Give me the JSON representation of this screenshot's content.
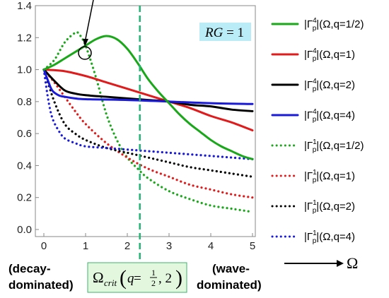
{
  "chart_data": {
    "type": "line",
    "xlim": [
      0,
      5
    ],
    "ylim": [
      0,
      1.4
    ],
    "xticks": [
      "0",
      "1",
      "2",
      "3",
      "4",
      "5"
    ],
    "yticks": [
      "0.0",
      "0.2",
      "0.4",
      "0.6",
      "0.8",
      "1.0",
      "1.2",
      "1.4"
    ],
    "axis_arrow_label": "Ω",
    "grid": false,
    "legend_position": "right",
    "series": [
      {
        "name": "|Γ_p^4|(Ω,q=1/2)",
        "legend_main": "|Γ",
        "legend_sup": "4",
        "legend_sub": "p",
        "legend_tail": "|(Ω,q=1/2)",
        "color": "#1aa81a",
        "dash": "solid",
        "x": [
          0,
          0.25,
          0.5,
          0.75,
          1.0,
          1.25,
          1.5,
          1.75,
          2.0,
          2.25,
          2.5,
          2.75,
          3.0,
          3.25,
          3.5,
          3.75,
          4.0,
          4.25,
          4.5,
          4.75,
          5.0
        ],
        "y": [
          1.0,
          1.03,
          1.07,
          1.11,
          1.15,
          1.19,
          1.21,
          1.19,
          1.13,
          1.04,
          0.94,
          0.86,
          0.79,
          0.72,
          0.66,
          0.61,
          0.56,
          0.52,
          0.49,
          0.46,
          0.44
        ]
      },
      {
        "name": "|Γ_p^4|(Ω,q=1)",
        "legend_main": "|Γ",
        "legend_sup": "4",
        "legend_sub": "p",
        "legend_tail": "|(Ω,q=1)",
        "color": "#e11b1b",
        "dash": "solid",
        "x": [
          0,
          0.5,
          1.0,
          1.5,
          2.0,
          2.5,
          3.0,
          3.5,
          4.0,
          4.5,
          5.0
        ],
        "y": [
          1.0,
          0.99,
          0.96,
          0.92,
          0.88,
          0.84,
          0.8,
          0.76,
          0.71,
          0.67,
          0.62
        ]
      },
      {
        "name": "|Γ_p^4|(Ω,q=2)",
        "legend_main": "|Γ",
        "legend_sup": "4",
        "legend_sub": "p",
        "legend_tail": "|(Ω,q=2)",
        "color": "#000000",
        "dash": "solid",
        "x": [
          0,
          0.25,
          0.5,
          0.75,
          1.0,
          1.5,
          2.0,
          2.5,
          3.0,
          3.5,
          4.0,
          4.5,
          5.0
        ],
        "y": [
          1.0,
          0.93,
          0.87,
          0.85,
          0.84,
          0.83,
          0.82,
          0.81,
          0.8,
          0.78,
          0.77,
          0.75,
          0.74
        ]
      },
      {
        "name": "|Γ_p^4|(Ω,q=4)",
        "legend_main": "|Γ",
        "legend_sup": "4",
        "legend_sub": "p",
        "legend_tail": "|(Ω,q=4)",
        "color": "#1a1adb",
        "dash": "solid",
        "x": [
          0,
          0.1,
          0.2,
          0.35,
          0.5,
          0.75,
          1.0,
          2.0,
          3.0,
          4.0,
          5.0
        ],
        "y": [
          1.0,
          0.93,
          0.87,
          0.84,
          0.83,
          0.82,
          0.815,
          0.81,
          0.8,
          0.79,
          0.785
        ]
      },
      {
        "name": "|Γ_p^1|(Ω,q=1/2)",
        "legend_main": "|Γ",
        "legend_sup": "1",
        "legend_sub": "p",
        "legend_tail": "|(Ω,q=1/2)",
        "color": "#1aa81a",
        "dash": "dot",
        "x": [
          0,
          0.25,
          0.5,
          0.75,
          0.85,
          1.0,
          1.25,
          1.5,
          1.75,
          2.0,
          2.25,
          2.5,
          3.0,
          3.5,
          4.0,
          4.5,
          5.0
        ],
        "y": [
          1.0,
          1.06,
          1.17,
          1.23,
          1.22,
          1.15,
          0.95,
          0.72,
          0.56,
          0.45,
          0.38,
          0.32,
          0.24,
          0.19,
          0.15,
          0.13,
          0.11
        ]
      },
      {
        "name": "|Γ_p^1|(Ω,q=1)",
        "legend_main": "|Γ",
        "legend_sup": "1",
        "legend_sub": "p",
        "legend_tail": "|(Ω,q=1)",
        "color": "#e11b1b",
        "dash": "dot",
        "x": [
          0,
          0.25,
          0.5,
          0.75,
          1.0,
          1.5,
          2.0,
          2.5,
          3.0,
          3.5,
          4.0,
          4.5,
          5.0
        ],
        "y": [
          1.0,
          0.92,
          0.83,
          0.74,
          0.66,
          0.54,
          0.45,
          0.38,
          0.33,
          0.28,
          0.25,
          0.22,
          0.2
        ]
      },
      {
        "name": "|Γ_p^1|(Ω,q=2)",
        "legend_main": "|Γ",
        "legend_sup": "1",
        "legend_sub": "p",
        "legend_tail": "|(Ω,q=2)",
        "color": "#000000",
        "dash": "dot",
        "x": [
          0,
          0.25,
          0.5,
          0.75,
          1.0,
          1.5,
          2.0,
          2.5,
          3.0,
          3.5,
          4.0,
          4.5,
          5.0
        ],
        "y": [
          1.0,
          0.8,
          0.66,
          0.6,
          0.56,
          0.51,
          0.48,
          0.45,
          0.42,
          0.39,
          0.37,
          0.35,
          0.33
        ]
      },
      {
        "name": "|Γ_p^1|(Ω,q=4)",
        "legend_main": "|Γ",
        "legend_sup": "1",
        "legend_sub": "p",
        "legend_tail": "|(Ω,q=4)",
        "color": "#1a1adb",
        "dash": "dot",
        "x": [
          0,
          0.1,
          0.2,
          0.35,
          0.5,
          0.75,
          1.0,
          1.5,
          2.0,
          2.5,
          3.0,
          3.5,
          4.0,
          4.5,
          5.0
        ],
        "y": [
          1.0,
          0.82,
          0.7,
          0.62,
          0.57,
          0.54,
          0.52,
          0.51,
          0.5,
          0.49,
          0.48,
          0.47,
          0.46,
          0.45,
          0.44
        ]
      }
    ],
    "critical_line": {
      "x": 2.3,
      "color": "#22b573"
    },
    "annotations": {
      "rg_main": "RG",
      "rg_eq": " = 1",
      "rg_box_color": "#b9ecf7",
      "omega_crit_symbol": "Ω",
      "omega_crit_sub": "crit",
      "omega_crit_q": "q",
      "omega_crit_eq": " = ",
      "omega_crit_num": "1",
      "omega_crit_den": "2",
      "omega_crit_tail": ", 2",
      "omega_crit_box_color": "#e3f7de",
      "omega_crit_border_color": "#3cb371",
      "decay_line1": "(decay-",
      "decay_line2": "dominated)",
      "wave_line1": "(wave-",
      "wave_line2": "dominated)"
    }
  }
}
